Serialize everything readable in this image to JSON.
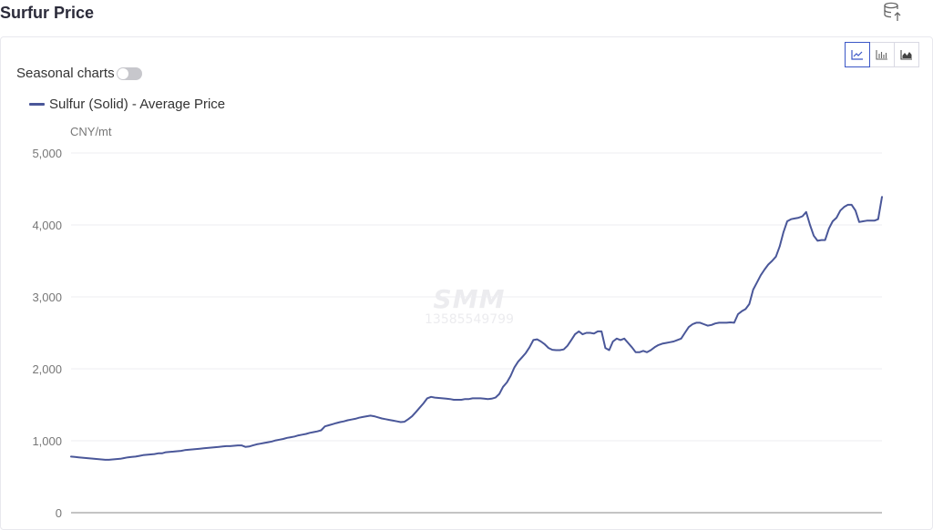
{
  "page": {
    "title": "Surfur Price"
  },
  "toolbar": {
    "export_icon": "database-export-icon",
    "chart_types": [
      "line-chart-icon",
      "bar-chart-icon",
      "area-chart-icon"
    ]
  },
  "seasonal": {
    "label": "Seasonal charts",
    "enabled": false
  },
  "watermark": {
    "logo": "SMM",
    "phone": "13585549799"
  },
  "colors": {
    "series": "#4a5799",
    "accent": "#3b56c6",
    "grid": "#ececf1"
  },
  "chart_data": {
    "type": "line",
    "title": "",
    "ylabel": "CNY/mt",
    "xlabel": "",
    "ylim": [
      0,
      5000
    ],
    "yticks": [
      0,
      1000,
      2000,
      3000,
      4000,
      5000
    ],
    "ytick_labels": [
      "0",
      "1,000",
      "2,000",
      "3,000",
      "4,000",
      "5,000"
    ],
    "grid": true,
    "legend": "top-left",
    "series": [
      {
        "name": "Sulfur (Solid) - Average Price",
        "values": [
          780,
          775,
          770,
          765,
          760,
          755,
          750,
          745,
          740,
          735,
          735,
          740,
          745,
          750,
          760,
          770,
          775,
          780,
          790,
          800,
          805,
          810,
          815,
          825,
          825,
          840,
          845,
          850,
          855,
          860,
          870,
          875,
          880,
          885,
          890,
          895,
          900,
          905,
          910,
          915,
          920,
          925,
          925,
          930,
          935,
          935,
          915,
          920,
          935,
          950,
          960,
          970,
          980,
          990,
          1005,
          1015,
          1025,
          1040,
          1050,
          1060,
          1075,
          1085,
          1095,
          1110,
          1120,
          1130,
          1145,
          1200,
          1215,
          1230,
          1245,
          1260,
          1270,
          1285,
          1295,
          1305,
          1320,
          1330,
          1340,
          1350,
          1340,
          1325,
          1310,
          1300,
          1290,
          1280,
          1270,
          1260,
          1265,
          1300,
          1340,
          1400,
          1460,
          1520,
          1590,
          1610,
          1600,
          1595,
          1590,
          1585,
          1580,
          1570,
          1570,
          1570,
          1580,
          1580,
          1590,
          1590,
          1590,
          1585,
          1580,
          1585,
          1600,
          1650,
          1750,
          1810,
          1900,
          2020,
          2100,
          2160,
          2220,
          2300,
          2400,
          2410,
          2380,
          2340,
          2290,
          2265,
          2260,
          2260,
          2270,
          2320,
          2400,
          2480,
          2520,
          2480,
          2500,
          2500,
          2490,
          2520,
          2520,
          2290,
          2260,
          2380,
          2420,
          2400,
          2420,
          2360,
          2300,
          2230,
          2230,
          2250,
          2230,
          2260,
          2300,
          2330,
          2350,
          2360,
          2370,
          2380,
          2400,
          2420,
          2500,
          2580,
          2620,
          2640,
          2640,
          2620,
          2600,
          2610,
          2630,
          2640,
          2640,
          2640,
          2645,
          2640,
          2760,
          2800,
          2830,
          2900,
          3100,
          3200,
          3300,
          3380,
          3450,
          3500,
          3560,
          3700,
          3900,
          4050,
          4080,
          4090,
          4100,
          4120,
          4180,
          4000,
          3850,
          3780,
          3790,
          3790,
          3950,
          4050,
          4100,
          4200,
          4250,
          4280,
          4280,
          4200,
          4040,
          4050,
          4060,
          4060,
          4060,
          4080,
          4390
        ]
      }
    ]
  }
}
